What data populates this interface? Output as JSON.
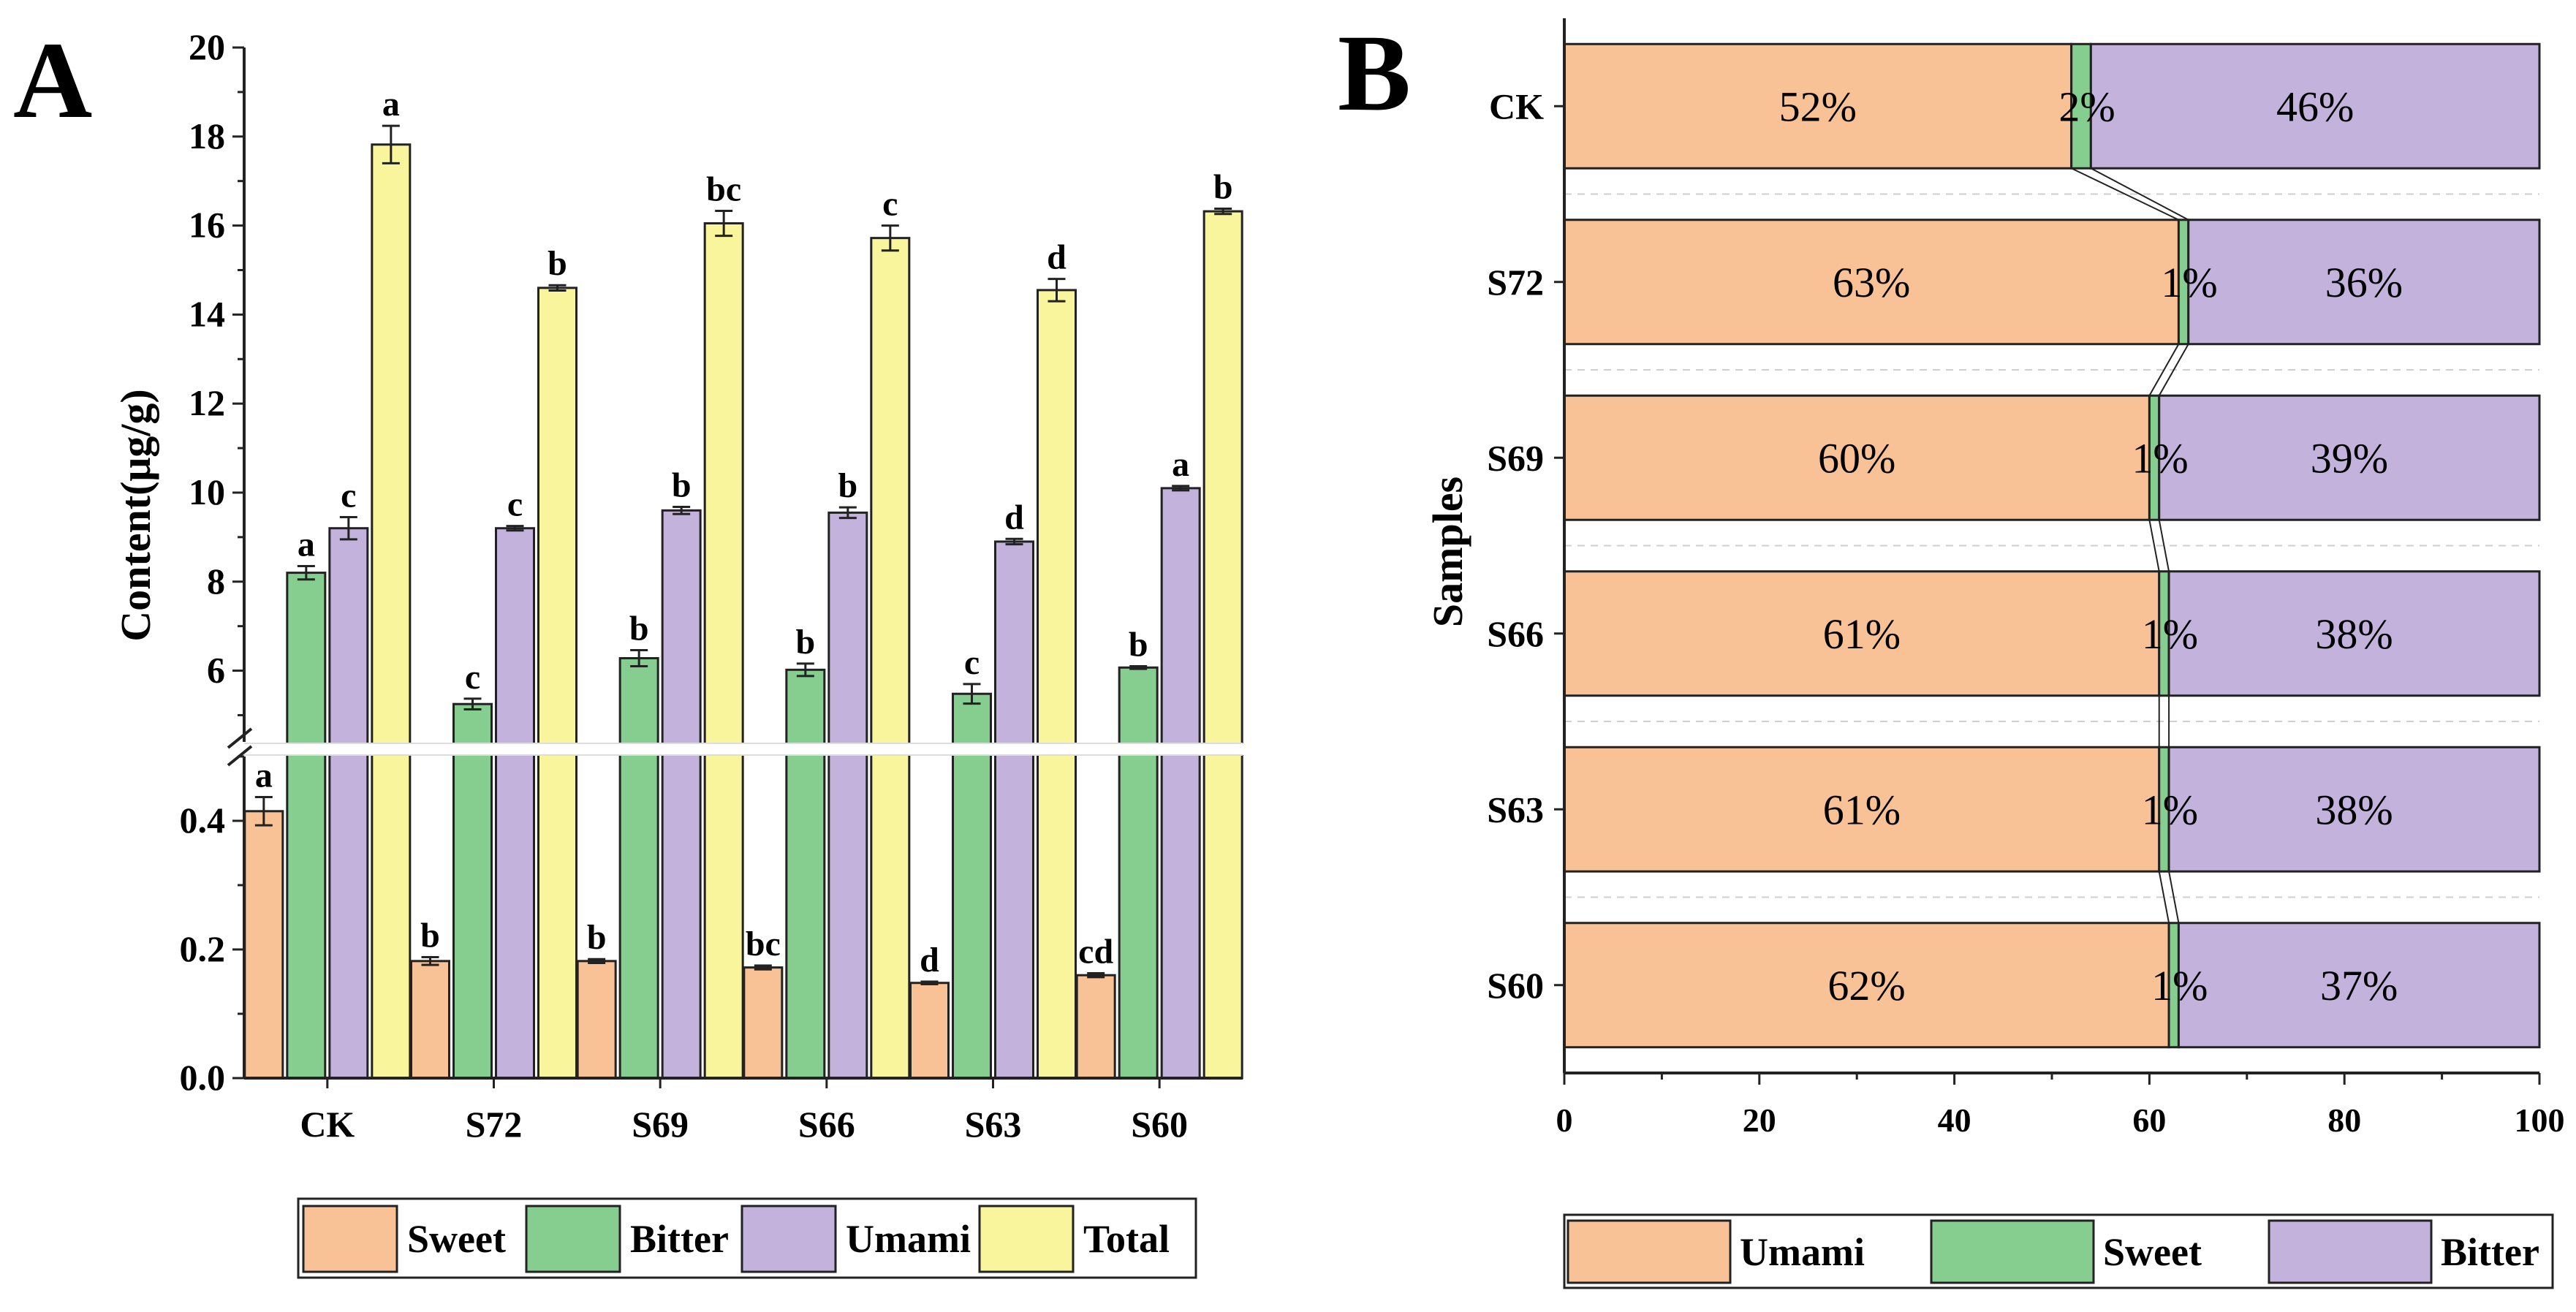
{
  "panels": [
    {
      "letter": "A",
      "ylabel": "Content(μg/g)",
      "categories": [
        "CK",
        "S72",
        "S69",
        "S66",
        "S63",
        "S60"
      ],
      "yticks_upper": [
        "6",
        "8",
        "10",
        "12",
        "14",
        "16",
        "18",
        "20"
      ],
      "yticks_lower": [
        "0.0",
        "0.2",
        "0.4"
      ],
      "legend": [
        "Sweet",
        "Bitter",
        "Umami",
        "Total"
      ]
    },
    {
      "letter": "B",
      "ylabel": "Samples",
      "categories": [
        "CK",
        "S72",
        "S69",
        "S66",
        "S63",
        "S60"
      ],
      "xticks": [
        "0",
        "20",
        "40",
        "60",
        "80",
        "100"
      ],
      "legend": [
        "Umami",
        "Sweet",
        "Bitter"
      ]
    }
  ],
  "colors": {
    "sweet": "#f8c196",
    "bitter": "#86cd90",
    "umami": "#c3b3dc",
    "total": "#f8f59c",
    "stroke": "#222222"
  },
  "chart_data": [
    {
      "type": "bar",
      "categories": [
        "CK",
        "S72",
        "S69",
        "S66",
        "S63",
        "S60"
      ],
      "ylabel": "Content(μg/g)",
      "ylim_lower": [
        0,
        0.5
      ],
      "ylim_upper": [
        4.4,
        20
      ],
      "series": [
        {
          "name": "Sweet",
          "values": [
            0.415,
            0.182,
            0.182,
            0.172,
            0.148,
            0.16
          ],
          "errors": [
            0.022,
            0.006,
            0.003,
            0.003,
            0.002,
            0.003
          ],
          "sig": [
            "a",
            "b",
            "b",
            "bc",
            "d",
            "cd"
          ]
        },
        {
          "name": "Bitter",
          "values": [
            8.2,
            5.25,
            6.28,
            6.02,
            5.48,
            6.07
          ],
          "errors": [
            0.15,
            0.12,
            0.18,
            0.14,
            0.22,
            0.03
          ],
          "sig": [
            "a",
            "c",
            "b",
            "b",
            "c",
            "b"
          ]
        },
        {
          "name": "Umami",
          "values": [
            9.2,
            9.2,
            9.6,
            9.55,
            8.9,
            10.1
          ],
          "errors": [
            0.25,
            0.05,
            0.08,
            0.12,
            0.06,
            0.05
          ],
          "sig": [
            "c",
            "c",
            "b",
            "b",
            "d",
            "a"
          ]
        },
        {
          "name": "Total",
          "values": [
            17.82,
            14.6,
            16.05,
            15.72,
            14.55,
            16.32
          ],
          "errors": [
            0.42,
            0.06,
            0.28,
            0.28,
            0.25,
            0.06
          ],
          "sig": [
            "a",
            "b",
            "bc",
            "c",
            "d",
            "b"
          ]
        }
      ]
    },
    {
      "type": "bar",
      "orientation": "horizontal-stacked",
      "categories": [
        "CK",
        "S72",
        "S69",
        "S66",
        "S63",
        "S60"
      ],
      "ylabel": "Samples",
      "xlim": [
        0,
        100
      ],
      "series": [
        {
          "name": "Umami",
          "values": [
            52,
            63,
            60,
            61,
            61,
            62
          ],
          "labels": [
            "52%",
            "63%",
            "60%",
            "61%",
            "61%",
            "62%"
          ]
        },
        {
          "name": "Sweet",
          "values": [
            2,
            1,
            1,
            1,
            1,
            1
          ],
          "labels": [
            "2%",
            "1%",
            "1%",
            "1%",
            "1%",
            "1%"
          ]
        },
        {
          "name": "Bitter",
          "values": [
            46,
            36,
            39,
            38,
            38,
            37
          ],
          "labels": [
            "46%",
            "36%",
            "39%",
            "38%",
            "38%",
            "37%"
          ]
        }
      ]
    }
  ]
}
